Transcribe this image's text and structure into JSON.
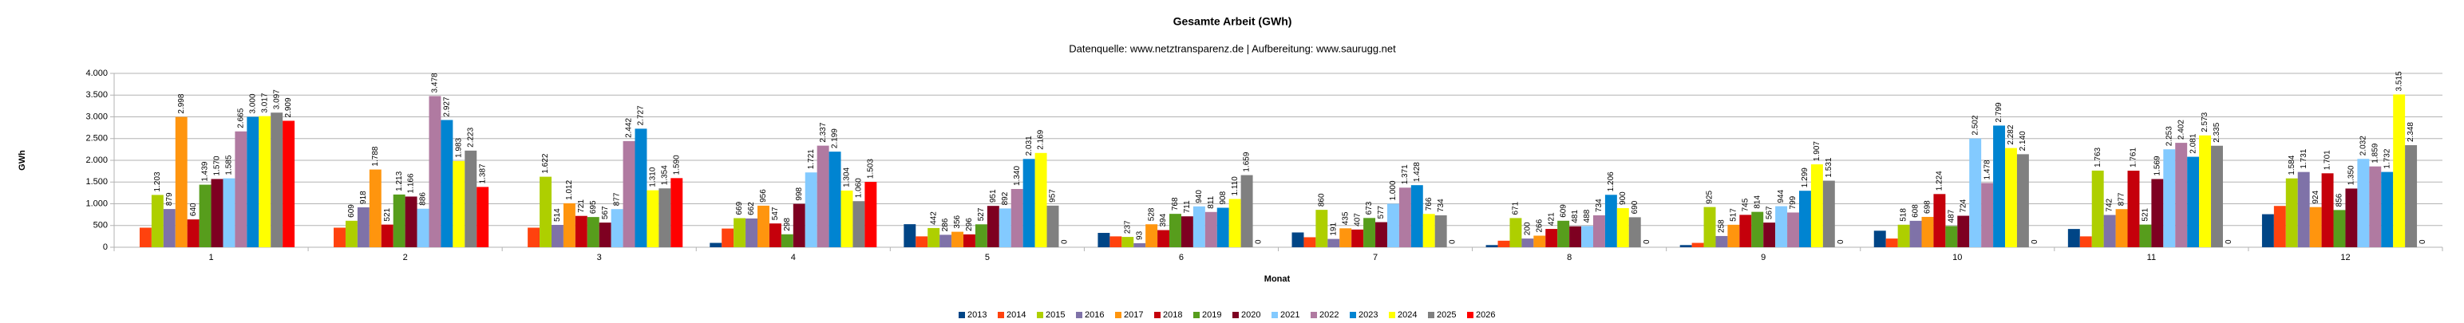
{
  "chart_data": {
    "type": "bar",
    "title": "Gesamte Arbeit (GWh)",
    "subtitle": "Datenquelle: www.netztransparenz.de  | Aufbereitung: www.saurugg.net",
    "x_label": "Monat",
    "y_label": "GWh",
    "categories": [
      "1",
      "2",
      "3",
      "4",
      "5",
      "6",
      "7",
      "8",
      "9",
      "10",
      "11",
      "12"
    ],
    "ylim": [
      0,
      4000
    ],
    "yticks": [
      0,
      {
        "value": 500,
        "label": "500"
      },
      {
        "value": 1000,
        "label": "1.000"
      },
      {
        "value": 1500,
        "label": "1.500"
      },
      {
        "value": 2000,
        "label": "2.000"
      },
      {
        "value": 2500,
        "label": "2.500"
      },
      {
        "value": 3000,
        "label": "3.000"
      },
      {
        "value": 3500,
        "label": "3.500"
      },
      {
        "value": 4000,
        "label": "4.000"
      }
    ],
    "grid": true,
    "legend": "bottom",
    "series": [
      {
        "name": "2013",
        "color": "#004586",
        "values": [
          null,
          null,
          null,
          100,
          530,
          330,
          340,
          50,
          50,
          380,
          420,
          760
        ]
      },
      {
        "name": "2014",
        "color": "#ff420e",
        "values": [
          450,
          450,
          450,
          430,
          250,
          250,
          230,
          150,
          100,
          200,
          250,
          950
        ]
      },
      {
        "name": "2015",
        "color": "#aecf00",
        "values": [
          1203,
          609,
          1622,
          669,
          442,
          237,
          860,
          671,
          925,
          518,
          1763,
          1584
        ],
        "value_labels": [
          "1.203",
          "609",
          "1.622",
          "669",
          "442",
          "237",
          "860",
          "671",
          "925",
          "518",
          "1.763",
          "1.584"
        ]
      },
      {
        "name": "2016",
        "color": "#7f72a8",
        "values": [
          879,
          918,
          514,
          662,
          286,
          93,
          191,
          200,
          258,
          608,
          742,
          1731
        ],
        "value_labels": [
          "879",
          "918",
          "514",
          "662",
          "286",
          "93",
          "191",
          "200",
          "258",
          "608",
          "742",
          "1.731"
        ]
      },
      {
        "name": "2017",
        "color": "#ff950e",
        "values": [
          2998,
          1788,
          1012,
          956,
          356,
          528,
          435,
          266,
          517,
          698,
          877,
          924
        ],
        "value_labels": [
          "2.998",
          "1.788",
          "1.012",
          "956",
          "356",
          "528",
          "435",
          "266",
          "517",
          "698",
          "877",
          "924"
        ]
      },
      {
        "name": "2018",
        "color": "#c5000b",
        "values": [
          640,
          521,
          721,
          547,
          296,
          394,
          407,
          421,
          745,
          1224,
          1761,
          1701
        ],
        "value_labels": [
          "640",
          "521",
          "721",
          "547",
          "296",
          "394",
          "407",
          "421",
          "745",
          "1.224",
          "1.761",
          "1.701"
        ]
      },
      {
        "name": "2019",
        "color": "#579d1c",
        "values": [
          1439,
          1213,
          695,
          298,
          527,
          768,
          673,
          609,
          814,
          487,
          521,
          856
        ],
        "value_labels": [
          "1.439",
          "1.213",
          "695",
          "298",
          "527",
          "768",
          "673",
          "609",
          "814",
          "487",
          "521",
          "856"
        ]
      },
      {
        "name": "2020",
        "color": "#7e0021",
        "values": [
          1570,
          1166,
          567,
          998,
          951,
          711,
          577,
          481,
          567,
          724,
          1569,
          1350
        ],
        "value_labels": [
          "1.570",
          "1.166",
          "567",
          "998",
          "951",
          "711",
          "577",
          "481",
          "567",
          "724",
          "1.569",
          "1.350"
        ]
      },
      {
        "name": "2021",
        "color": "#83caff",
        "values": [
          1585,
          886,
          877,
          1721,
          892,
          940,
          1000,
          488,
          944,
          2502,
          2253,
          2032
        ],
        "value_labels": [
          "1.585",
          "886",
          "877",
          "1.721",
          "892",
          "940",
          "1.000",
          "488",
          "944",
          "2.502",
          "2.253",
          "2.032"
        ]
      },
      {
        "name": "2022",
        "color": "#b07aa1",
        "values": [
          2665,
          3478,
          2442,
          2337,
          1340,
          811,
          1371,
          734,
          799,
          1478,
          2402,
          1859
        ],
        "value_labels": [
          "2.665",
          "3.478",
          "2.442",
          "2.337",
          "1.340",
          "811",
          "1.371",
          "734",
          "799",
          "1.478",
          "2.402",
          "1.859"
        ]
      },
      {
        "name": "2023",
        "color": "#0084d1",
        "values": [
          3000,
          2927,
          2727,
          2199,
          2031,
          908,
          1428,
          1206,
          1299,
          2799,
          2081,
          1732
        ],
        "value_labels": [
          "3.000",
          "2.927",
          "2.727",
          "2.199",
          "2.031",
          "908",
          "1.428",
          "1.206",
          "1.299",
          "2.799",
          "2.081",
          "1.732"
        ]
      },
      {
        "name": "2024",
        "color": "#ffff00",
        "values": [
          3017,
          1983,
          1310,
          1304,
          2169,
          1110,
          766,
          900,
          1907,
          2282,
          2573,
          3515
        ],
        "value_labels": [
          "3.017",
          "1.983",
          "1.310",
          "1.304",
          "2.169",
          "1.110",
          "766",
          "900",
          "1.907",
          "2.282",
          "2.573",
          "3.515"
        ]
      },
      {
        "name": "2025",
        "color": "#808080",
        "values": [
          3097,
          2223,
          1354,
          1060,
          957,
          1659,
          734,
          690,
          1531,
          2140,
          2335,
          2348
        ],
        "value_labels": [
          "3.097",
          "2.223",
          "1.354",
          "1.060",
          "957",
          "1.659",
          "734",
          "690",
          "1.531",
          "2.140",
          "2.335",
          "2.348"
        ]
      },
      {
        "name": "2026",
        "color": "#ff0000",
        "values": [
          2909,
          1387,
          1590,
          1503,
          0,
          0,
          0,
          0,
          0,
          0,
          0,
          0
        ],
        "value_labels": [
          "2.909",
          "1.387",
          "1.590",
          "1.503",
          "0",
          "0",
          "0",
          "0",
          "0",
          "0",
          "0",
          "0"
        ]
      }
    ]
  }
}
